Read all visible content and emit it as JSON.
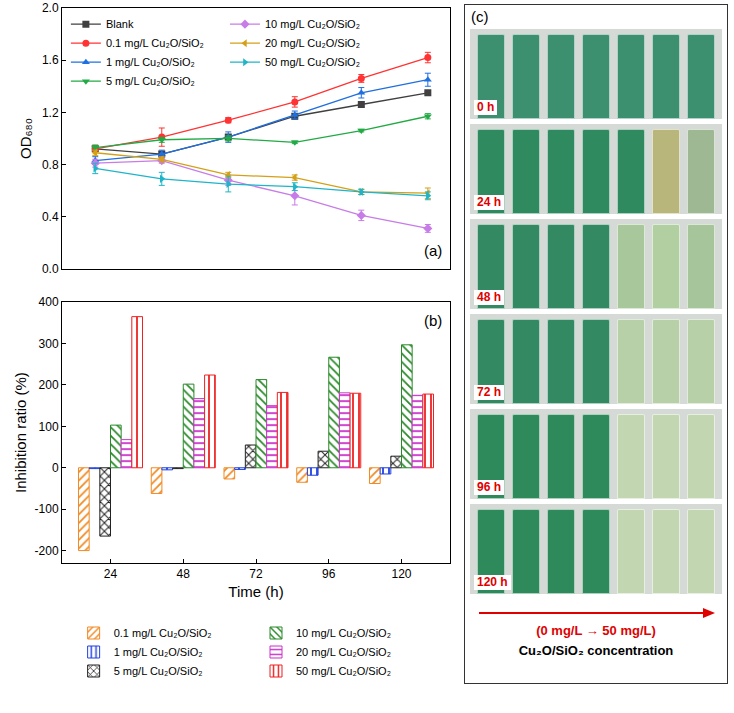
{
  "chart_data": [
    {
      "type": "line",
      "y_label": "OD₆₈₀",
      "annotations": [
        {
          "text": "(a)"
        }
      ],
      "x": [
        0,
        24,
        48,
        72,
        96,
        120
      ],
      "xlim": [
        -12,
        128
      ],
      "tick_labels": "y",
      "ylim": [
        0,
        2
      ],
      "yticks": [
        {
          "value": 0,
          "label": "0.0"
        },
        0.4,
        0.8,
        1.2,
        1.6,
        {
          "value": 2,
          "label": "2.0"
        }
      ],
      "grid": false,
      "legend": "upper left",
      "series": [
        {
          "name": "Blank",
          "color": "#404040",
          "marker": "square",
          "values": [
            0.92,
            0.88,
            1.01,
            1.17,
            1.26,
            1.35
          ],
          "errors": [
            0.01,
            0.02,
            0.02,
            0.02,
            0.02,
            0.01
          ]
        },
        {
          "name": "0.1 mg/L Cu₂O/SiO₂",
          "color": "#ff3333",
          "marker": "circle",
          "values": [
            0.92,
            1.01,
            1.14,
            1.28,
            1.46,
            1.62
          ],
          "errors": [
            0.02,
            0.07,
            0.02,
            0.04,
            0.03,
            0.04
          ]
        },
        {
          "name": "1 mg/L Cu₂O/SiO₂",
          "color": "#1f6fe0",
          "marker": "triangle-up",
          "values": [
            0.83,
            0.88,
            1.01,
            1.18,
            1.35,
            1.45
          ],
          "errors": [
            0.03,
            0.03,
            0.04,
            0.03,
            0.04,
            0.05
          ]
        },
        {
          "name": "5 mg/L Cu₂O/SiO₂",
          "color": "#22aa44",
          "marker": "triangle-down",
          "values": [
            0.93,
            0.99,
            1.0,
            0.97,
            1.06,
            1.17
          ],
          "errors": [
            0.02,
            0.02,
            0.02,
            0.01,
            0.01,
            0.02
          ]
        },
        {
          "name": "10 mg/L Cu₂O/SiO₂",
          "color": "#c77ce8",
          "marker": "diamond",
          "values": [
            0.81,
            0.83,
            0.68,
            0.56,
            0.41,
            0.31
          ],
          "errors": [
            0.03,
            0.02,
            0.04,
            0.07,
            0.04,
            0.03
          ]
        },
        {
          "name": "20 mg/L Cu₂O/SiO₂",
          "color": "#d4a017",
          "marker": "triangle-left",
          "values": [
            0.89,
            0.84,
            0.72,
            0.7,
            0.59,
            0.58
          ],
          "errors": [
            0.02,
            0.02,
            0.02,
            0.02,
            0.02,
            0.04
          ]
        },
        {
          "name": "50 mg/L Cu₂O/SiO₂",
          "color": "#1fb5c8",
          "marker": "triangle-right",
          "values": [
            0.77,
            0.69,
            0.65,
            0.63,
            0.59,
            0.56
          ],
          "errors": [
            0.04,
            0.05,
            0.06,
            0.03,
            0.02,
            0.03
          ]
        }
      ]
    },
    {
      "type": "bar",
      "x_label": "Time (h)",
      "y_label": "Inhibition ratio (%)",
      "annotations": [
        {
          "text": "(b)"
        }
      ],
      "x": [
        24,
        48,
        72,
        96,
        120
      ],
      "xlim": [
        8,
        136
      ],
      "xticks": [
        24,
        48,
        72,
        96,
        120
      ],
      "ylim": [
        -230,
        400
      ],
      "yticks": [
        -200,
        -100,
        0,
        100,
        200,
        300,
        400
      ],
      "grid": false,
      "legend": "bottom",
      "series": [
        {
          "name": "0.1 mg/L Cu₂O/SiO₂",
          "color": "#f08a24",
          "marker": "diagonal",
          "values": [
            -200,
            -62,
            -27,
            -35,
            -38
          ]
        },
        {
          "name": "1 mg/L Cu₂O/SiO₂",
          "color": "#2040e0",
          "marker": "vertical",
          "values": [
            -2,
            -5,
            -4,
            -18,
            -15
          ]
        },
        {
          "name": "5 mg/L Cu₂O/SiO₂",
          "color": "#222222",
          "marker": "cross",
          "values": [
            -165,
            -2,
            55,
            40,
            28
          ]
        },
        {
          "name": "10 mg/L Cu₂O/SiO₂",
          "color": "#2a8a2a",
          "marker": "backdiagonal",
          "values": [
            103,
            202,
            213,
            267,
            297
          ]
        },
        {
          "name": "20 mg/L Cu₂O/SiO₂",
          "color": "#cc33cc",
          "marker": "horizontal",
          "values": [
            68,
            167,
            150,
            181,
            175
          ]
        },
        {
          "name": "50 mg/L Cu₂O/SiO₂",
          "color": "#ee2222",
          "marker": "vertical",
          "values": [
            365,
            224,
            182,
            180,
            178
          ]
        }
      ]
    }
  ],
  "photo_panel": {
    "label": "(c)",
    "rows": [
      {
        "label": "0 h",
        "colors": [
          "#3c9070",
          "#3c9070",
          "#3c9070",
          "#3c9070",
          "#3c9070",
          "#3c9070",
          "#3c9070"
        ]
      },
      {
        "label": "24 h",
        "colors": [
          "#2f8a60",
          "#2f8a60",
          "#2f8a60",
          "#2f8a60",
          "#2f8a60",
          "#b8b67a",
          "#9fb894"
        ]
      },
      {
        "label": "48 h",
        "colors": [
          "#338a62",
          "#338a62",
          "#338a62",
          "#338a62",
          "#a8c79a",
          "#b2cfa2",
          "#a7c59a"
        ]
      },
      {
        "label": "72 h",
        "colors": [
          "#338a62",
          "#338a62",
          "#338a62",
          "#338a62",
          "#b7d0a8",
          "#b7d0a8",
          "#b7d0a8"
        ]
      },
      {
        "label": "96 h",
        "colors": [
          "#2e8a5a",
          "#2e8a5a",
          "#2e8a5a",
          "#2e8a5a",
          "#c3d6b2",
          "#c3d6b2",
          "#c3d6b2"
        ]
      },
      {
        "label": "120 h",
        "colors": [
          "#2e8a5a",
          "#2e8a5a",
          "#2e8a5a",
          "#2e8a5a",
          "#c3d6b2",
          "#c3d6b2",
          "#c3d6b2"
        ]
      }
    ],
    "arrow_label": "(0 mg/L → 50 mg/L)",
    "caption": "Cu₂O/SiO₂ concentration"
  }
}
